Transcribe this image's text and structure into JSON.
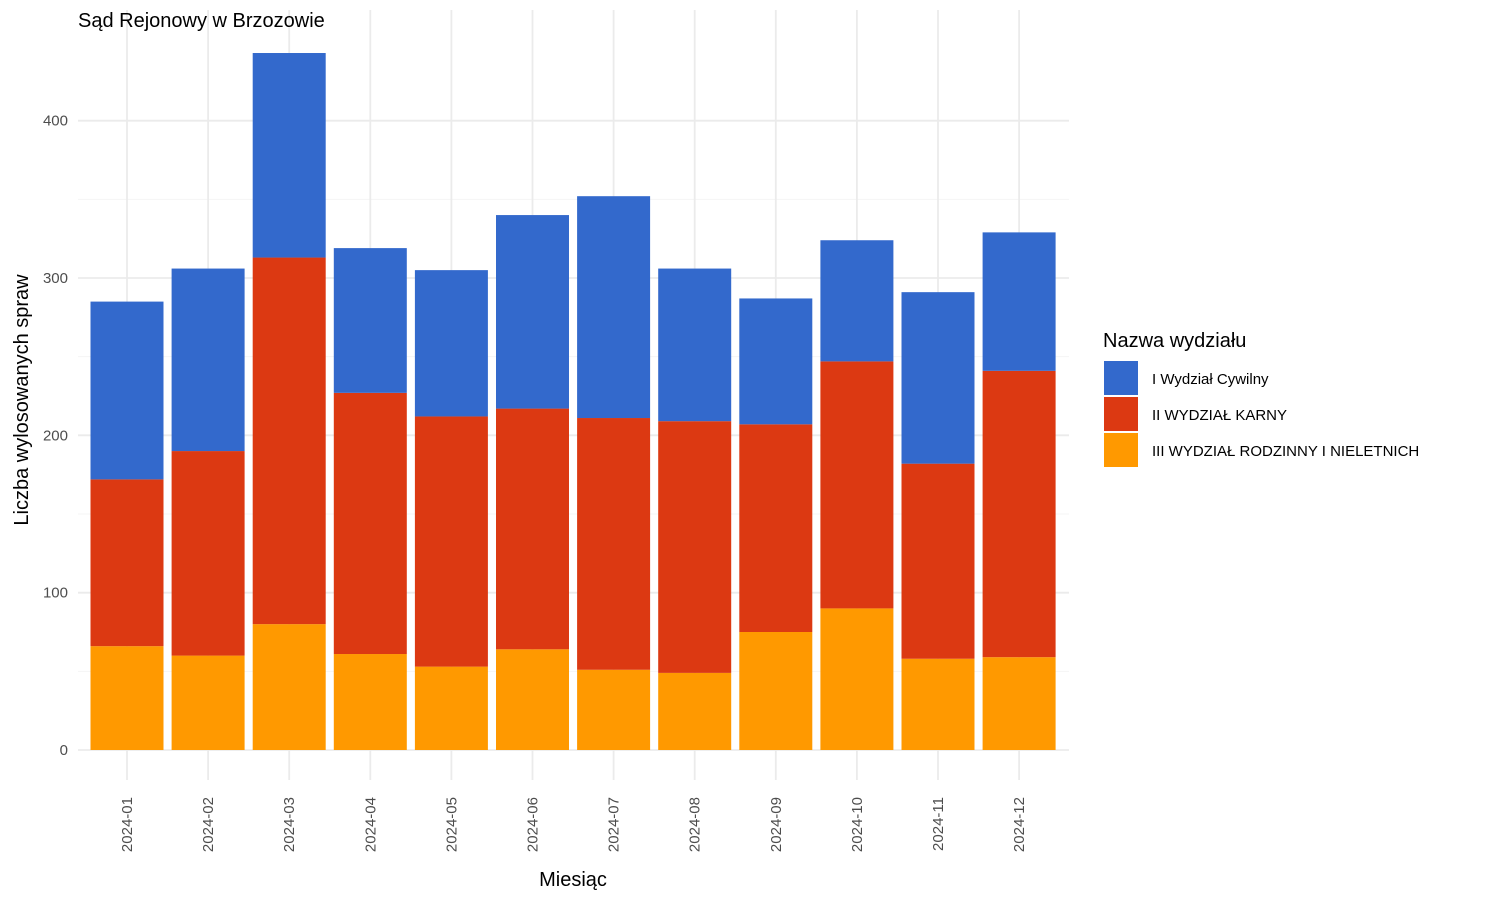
{
  "chart_data": {
    "type": "bar",
    "stacked": true,
    "title": "Sąd Rejonowy w Brzozowie",
    "xlabel": "Miesiąc",
    "ylabel": "Liczba wylosowanych spraw",
    "ylim": [
      0,
      450
    ],
    "yticks": [
      0,
      100,
      200,
      300,
      400
    ],
    "grid": true,
    "legend_title": "Nazwa wydziału",
    "legend_position": "right",
    "categories": [
      "2024-01",
      "2024-02",
      "2024-03",
      "2024-04",
      "2024-05",
      "2024-06",
      "2024-07",
      "2024-08",
      "2024-09",
      "2024-10",
      "2024-11",
      "2024-12"
    ],
    "series": [
      {
        "name": "I Wydział Cywilny",
        "color": "#3369cc",
        "values": [
          113,
          116,
          130,
          92,
          93,
          123,
          141,
          97,
          80,
          77,
          109,
          88
        ]
      },
      {
        "name": "II WYDZIAŁ KARNY",
        "color": "#dc3912",
        "values": [
          106,
          130,
          233,
          166,
          159,
          153,
          160,
          160,
          132,
          157,
          124,
          182
        ]
      },
      {
        "name": "III WYDZIAŁ RODZINNY I NIELETNICH",
        "color": "#ff9900",
        "values": [
          66,
          60,
          80,
          61,
          53,
          64,
          51,
          49,
          75,
          90,
          58,
          59
        ]
      }
    ]
  }
}
